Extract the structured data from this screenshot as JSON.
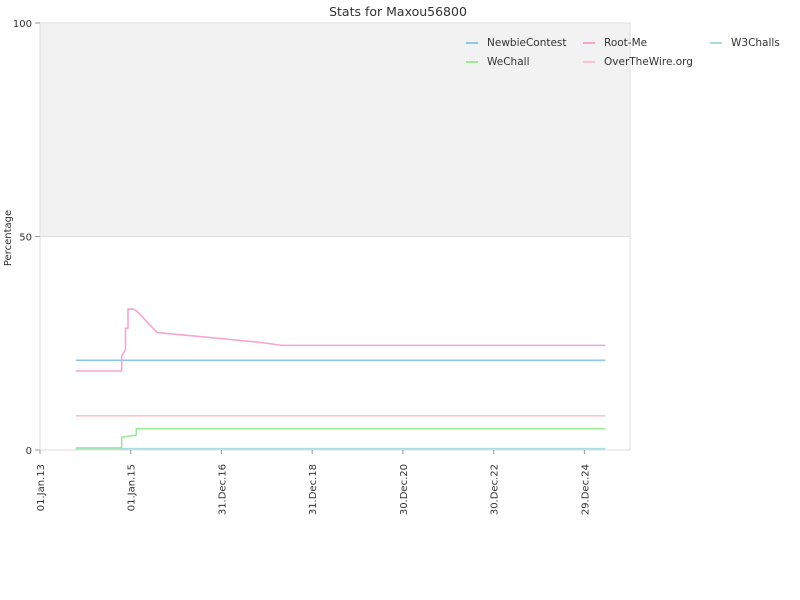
{
  "chart_data": {
    "type": "line",
    "title": "Stats for Maxou56800",
    "ylabel": "Percentage",
    "xlabel": "",
    "ylim": [
      0,
      100
    ],
    "y_ticks": [
      0,
      50,
      100
    ],
    "xlim": [
      "2013-01-01",
      "2025-12-31"
    ],
    "x_ticks": [
      {
        "date": "2013-01-01",
        "label": "01.Jan.13"
      },
      {
        "date": "2015-01-01",
        "label": "01.Jan.15"
      },
      {
        "date": "2016-12-31",
        "label": "31.Dec.16"
      },
      {
        "date": "2018-12-31",
        "label": "31.Dec.18"
      },
      {
        "date": "2020-12-30",
        "label": "30.Dec.20"
      },
      {
        "date": "2022-12-30",
        "label": "30.Dec.22"
      },
      {
        "date": "2024-12-29",
        "label": "29.Dec.24"
      }
    ],
    "bands": [
      {
        "from": 50,
        "to": 100,
        "color": "#f2f2f2"
      }
    ],
    "legend_position": "top-right",
    "series": [
      {
        "name": "NewbieContest",
        "color": "#8ec6ea",
        "points": [
          [
            "2013-10-15",
            21
          ],
          [
            "2025-06-15",
            21
          ]
        ]
      },
      {
        "name": "Root-Me",
        "color": "#f4a6cf",
        "step": true,
        "points": [
          [
            "2013-10-15",
            18.5
          ],
          [
            "2014-10-20",
            18.5
          ],
          [
            "2014-10-20",
            22
          ],
          [
            "2014-11-20",
            23.5
          ],
          [
            "2014-11-20",
            28.5
          ],
          [
            "2014-12-10",
            28.5
          ],
          [
            "2014-12-10",
            33
          ],
          [
            "2015-01-20",
            33
          ],
          [
            "2015-02-20",
            32.5
          ],
          [
            "2015-08-01",
            27.5
          ],
          [
            "2016-08-01",
            26.5
          ],
          [
            "2017-08-01",
            25.5
          ],
          [
            "2018-01-01",
            25
          ],
          [
            "2018-05-01",
            24.5
          ],
          [
            "2025-06-15",
            24.5
          ]
        ]
      },
      {
        "name": "W3Challs",
        "color": "#a8dde8",
        "points": [
          [
            "2013-10-15",
            0.3
          ],
          [
            "2025-06-15",
            0.3
          ]
        ]
      },
      {
        "name": "WeChall",
        "color": "#9ee89a",
        "step": true,
        "points": [
          [
            "2013-10-15",
            0.5
          ],
          [
            "2014-10-20",
            0.5
          ],
          [
            "2014-10-20",
            3
          ],
          [
            "2015-02-15",
            3.5
          ],
          [
            "2015-02-15",
            5
          ],
          [
            "2025-06-15",
            5
          ]
        ]
      },
      {
        "name": "OverTheWire.org",
        "color": "#f8c6cf",
        "points": [
          [
            "2013-10-15",
            8
          ],
          [
            "2025-06-15",
            8
          ]
        ]
      }
    ]
  }
}
